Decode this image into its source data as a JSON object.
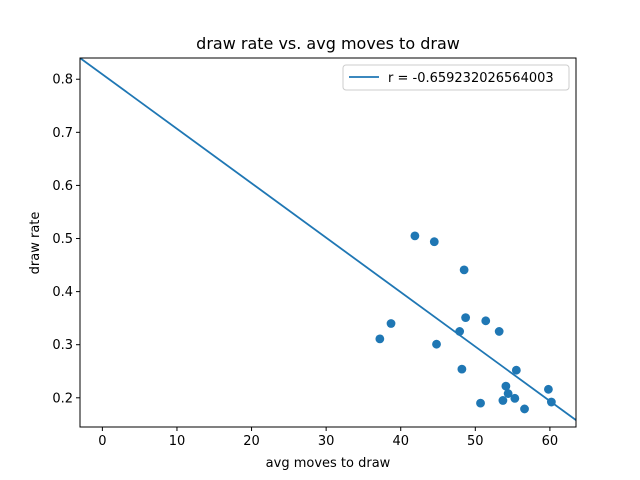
{
  "chart_data": {
    "type": "scatter",
    "title": "draw rate vs. avg moves to draw",
    "xlabel": "avg moves to draw",
    "ylabel": "draw rate",
    "xlim": [
      -3,
      63.5
    ],
    "ylim": [
      0.145,
      0.84
    ],
    "xticks": [
      0,
      10,
      20,
      30,
      40,
      50,
      60
    ],
    "yticks": [
      0.2,
      0.3,
      0.4,
      0.5,
      0.6,
      0.7,
      0.8
    ],
    "grid": false,
    "legend_position": "top-right",
    "colors": {
      "points": "#1f77b4",
      "line": "#1f77b4"
    },
    "series": [
      {
        "kind": "scatter",
        "x": [
          37.2,
          38.7,
          41.9,
          44.5,
          44.8,
          47.9,
          48.2,
          48.5,
          48.7,
          50.7,
          51.4,
          53.2,
          53.7,
          54.1,
          54.4,
          55.3,
          55.5,
          56.6,
          59.8,
          60.2
        ],
        "y": [
          0.311,
          0.34,
          0.505,
          0.494,
          0.301,
          0.325,
          0.254,
          0.441,
          0.351,
          0.19,
          0.345,
          0.325,
          0.195,
          0.222,
          0.208,
          0.199,
          0.252,
          0.179,
          0.216,
          0.192
        ]
      },
      {
        "kind": "line",
        "name": "r = -0.659232026564003",
        "x": [
          -3,
          63.5
        ],
        "y": [
          0.84,
          0.158
        ]
      }
    ]
  }
}
